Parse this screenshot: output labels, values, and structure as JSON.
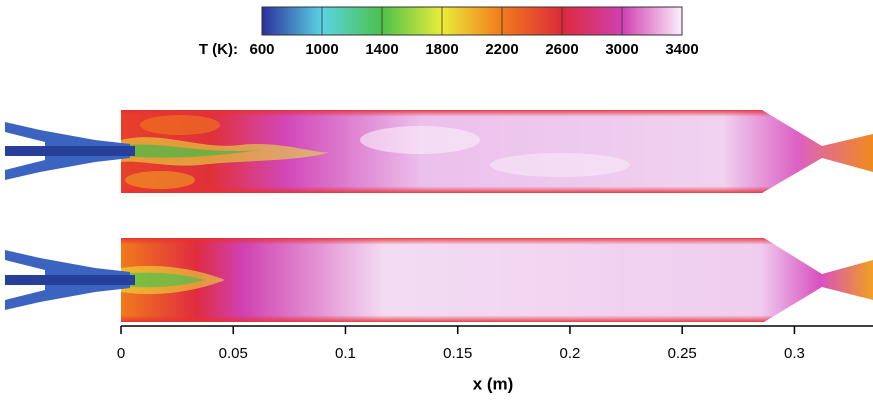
{
  "chart_data": {
    "type": "contour",
    "colorbar_label": "T (K):",
    "clim": [
      600,
      3400
    ],
    "cticks": [
      600,
      1000,
      1400,
      1800,
      2200,
      2600,
      3000,
      3400
    ],
    "colormap": [
      "#2a2f9a",
      "#5ad4e4",
      "#4cc24a",
      "#ecec3a",
      "#f07a1c",
      "#dc2a3a",
      "#d040b0",
      "#fbeffb"
    ],
    "xlabel": "x (m)",
    "xlim": [
      0,
      0.335
    ],
    "xticks": [
      0,
      0.05,
      0.1,
      0.15,
      0.2,
      0.25,
      0.3
    ]
  }
}
